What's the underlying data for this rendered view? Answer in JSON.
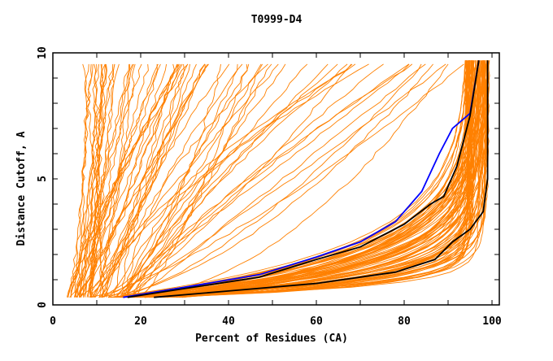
{
  "chart_data": {
    "type": "line",
    "title": "T0999-D4",
    "xlabel": "Percent of Residues (CA)",
    "ylabel": "Distance Cutoff, A",
    "xlim": [
      0,
      100
    ],
    "ylim": [
      0,
      10
    ],
    "x_ticks": [
      "0",
      "20",
      "40",
      "60",
      "80",
      "100"
    ],
    "y_ticks": [
      "0",
      "5",
      "10"
    ],
    "grid": false,
    "colors": {
      "models": "#ff8000",
      "highlight_blue": "#0000ff",
      "highlight_black": "#000000"
    },
    "highlighted_series": [
      {
        "name": "blue",
        "color": "#0000ff",
        "x": [
          16,
          30,
          47,
          60,
          70,
          78,
          84,
          88,
          91,
          95,
          97
        ],
        "y": [
          0.3,
          0.7,
          1.2,
          1.9,
          2.5,
          3.3,
          4.5,
          6.0,
          7.0,
          7.6,
          9.7
        ]
      },
      {
        "name": "black-1",
        "color": "#000000",
        "x": [
          17,
          30,
          47,
          60,
          70,
          80,
          86,
          89,
          92,
          95,
          97
        ],
        "y": [
          0.3,
          0.65,
          1.1,
          1.8,
          2.3,
          3.2,
          4.0,
          4.3,
          5.5,
          7.5,
          9.7
        ]
      },
      {
        "name": "black-2",
        "color": "#000000",
        "x": [
          23,
          40,
          60,
          78,
          87,
          91,
          95,
          98,
          99,
          99
        ],
        "y": [
          0.3,
          0.55,
          0.85,
          1.3,
          1.8,
          2.5,
          3.0,
          3.7,
          5.0,
          9.7
        ]
      }
    ],
    "model_series_families": [
      {
        "name": "steep-left",
        "count": 45,
        "start_x_range": [
          3,
          12
        ],
        "end_x_range": [
          7,
          36
        ]
      },
      {
        "name": "middle",
        "count": 30,
        "start_x_range": [
          8,
          20
        ],
        "end_x_range": [
          38,
          95
        ]
      },
      {
        "name": "dense-bottom",
        "count": 90,
        "start_x_range": [
          12,
          30
        ],
        "end_x_range": [
          94,
          99.5
        ]
      }
    ]
  }
}
